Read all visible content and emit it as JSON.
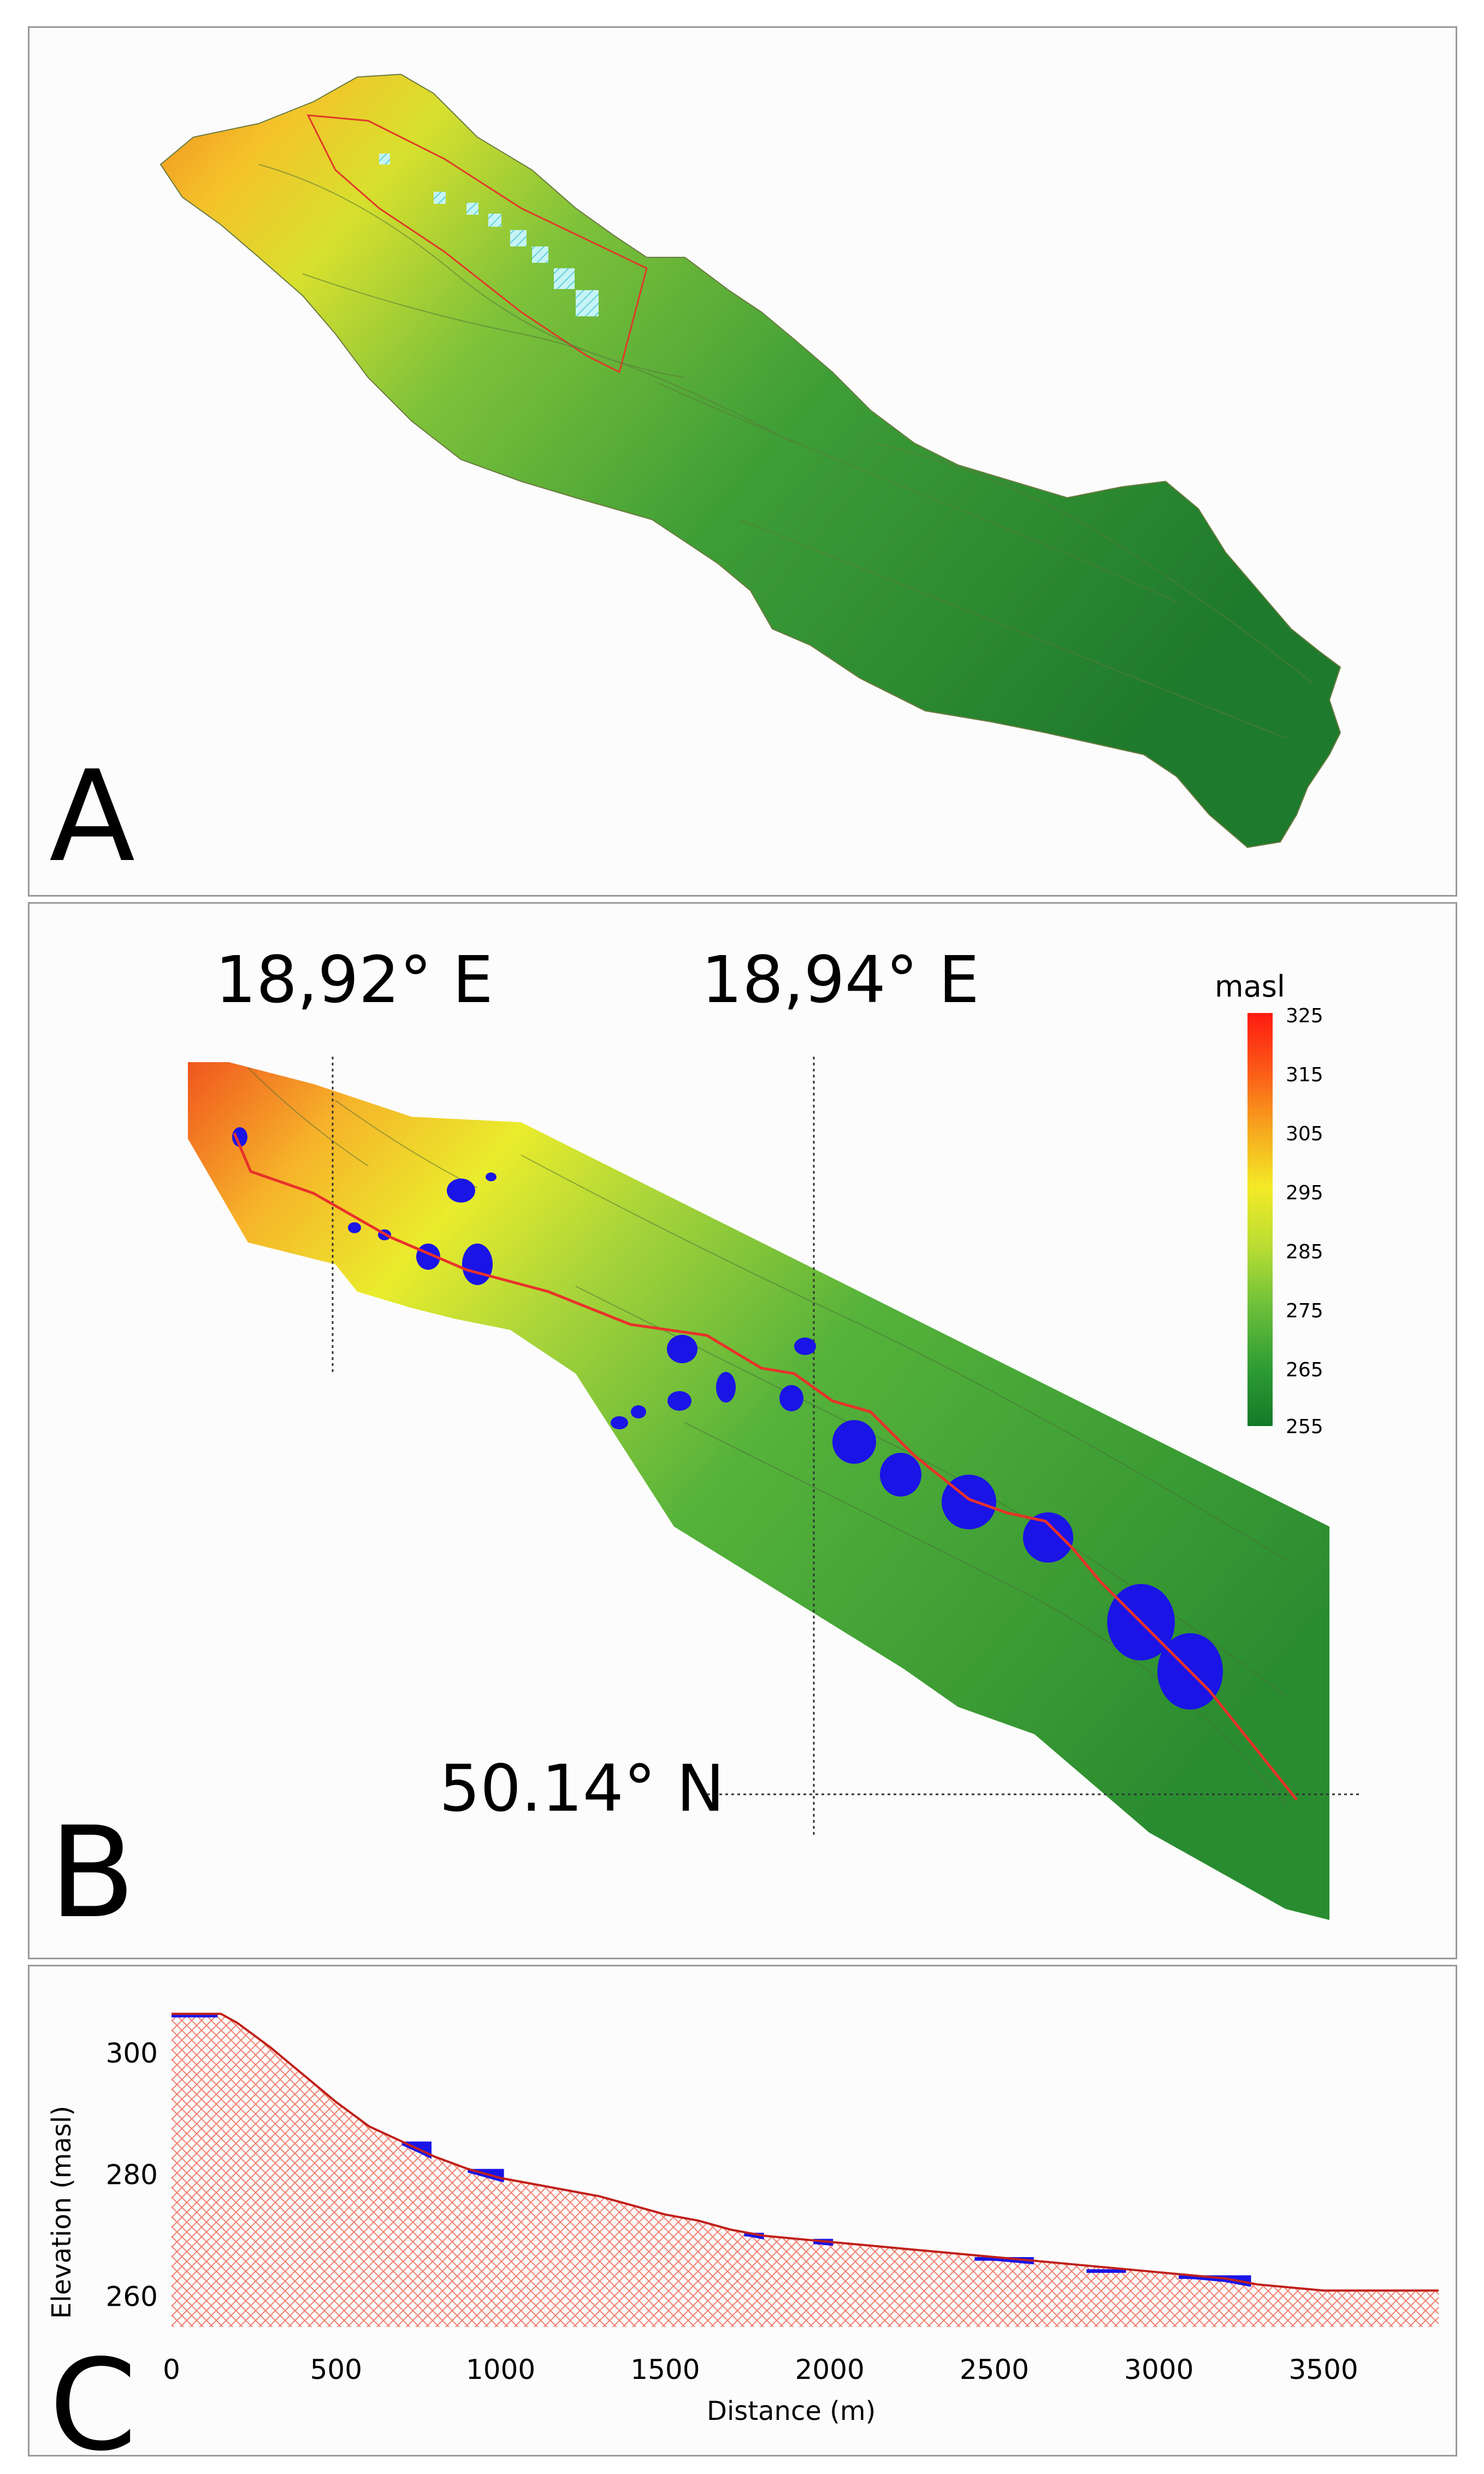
{
  "panels": {
    "a": {
      "letter": "A"
    },
    "b": {
      "letter": "B",
      "lon_label_1": "18,92° E",
      "lon_label_2": "18,94° E",
      "lat_label": "50.14° N",
      "legend": {
        "title": "masl",
        "ticks": [
          "325",
          "315",
          "305",
          "295",
          "285",
          "275",
          "265",
          "255"
        ]
      }
    },
    "c": {
      "letter": "C"
    }
  },
  "colors": {
    "terrain_high": "#ff3a1a",
    "terrain_mid": "#e8ee2a",
    "terrain_low": "#1a7a2a",
    "ponds": "#1a14e6",
    "stream_line": "#e8322a",
    "profile_hatch": "#f08070"
  },
  "chart_data": {
    "type": "area",
    "title": "",
    "xlabel": "Distance (m)",
    "ylabel": "Elevation (masl)",
    "xlim": [
      0,
      3850
    ],
    "ylim": [
      255,
      308
    ],
    "xticks": [
      "0",
      "500",
      "1000",
      "1500",
      "2000",
      "2500",
      "3000",
      "3500"
    ],
    "yticks": [
      "260",
      "280",
      "300"
    ],
    "series": [
      {
        "x": [
          0,
          150,
          200,
          300,
          400,
          500,
          600,
          700,
          800,
          900,
          1000,
          1100,
          1200,
          1300,
          1400,
          1500,
          1600,
          1700,
          1800,
          1900,
          2000,
          2200,
          2400,
          2600,
          2800,
          3000,
          3200,
          3300,
          3400,
          3500,
          3600,
          3700,
          3850
        ],
        "y": [
          306.5,
          306.5,
          305,
          301,
          296.5,
          292,
          288,
          285.5,
          283,
          281,
          279.5,
          278.5,
          277.5,
          276.5,
          275,
          273.5,
          272.5,
          271,
          270,
          269.5,
          269,
          268,
          267,
          266,
          265,
          264,
          263,
          262,
          261.5,
          261,
          261,
          261,
          261
        ]
      }
    ],
    "ponds": [
      {
        "x_start": 0,
        "x_end": 140,
        "surface": 306.5
      },
      {
        "x_start": 700,
        "x_end": 790,
        "surface": 285.5
      },
      {
        "x_start": 900,
        "x_end": 1010,
        "surface": 281
      },
      {
        "x_start": 1740,
        "x_end": 1800,
        "surface": 270.5
      },
      {
        "x_start": 1950,
        "x_end": 2010,
        "surface": 269.5
      },
      {
        "x_start": 2440,
        "x_end": 2620,
        "surface": 266.5
      },
      {
        "x_start": 2780,
        "x_end": 2900,
        "surface": 264.5
      },
      {
        "x_start": 3060,
        "x_end": 3280,
        "surface": 263.5
      }
    ],
    "grid": false
  }
}
